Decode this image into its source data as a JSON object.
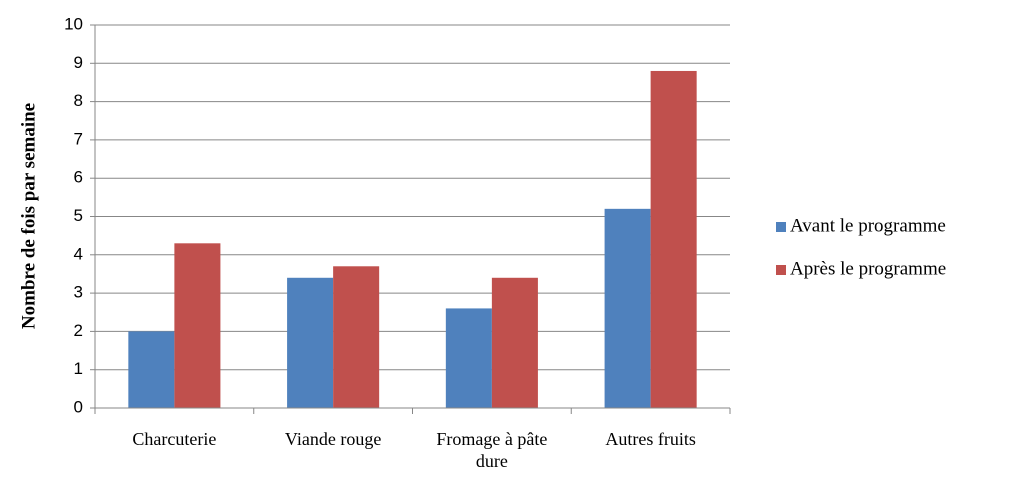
{
  "chart_data": {
    "type": "bar",
    "y_label": "Nombre de fois par semaine",
    "categories": [
      "Charcuterie",
      "Viande rouge",
      "Fromage à pâte dure",
      "Autres fruits"
    ],
    "series": [
      {
        "name": "Avant le programme",
        "color": "#4f81bd",
        "values": [
          2,
          3.4,
          2.6,
          5.2
        ]
      },
      {
        "name": "Après le programme",
        "color": "#c0504d",
        "values": [
          4.3,
          3.7,
          3.4,
          8.8
        ]
      }
    ],
    "ylim": [
      0,
      10
    ],
    "yticks": [
      0,
      1,
      2,
      3,
      4,
      5,
      6,
      7,
      8,
      9,
      10
    ],
    "grid": true,
    "legend": "right"
  }
}
